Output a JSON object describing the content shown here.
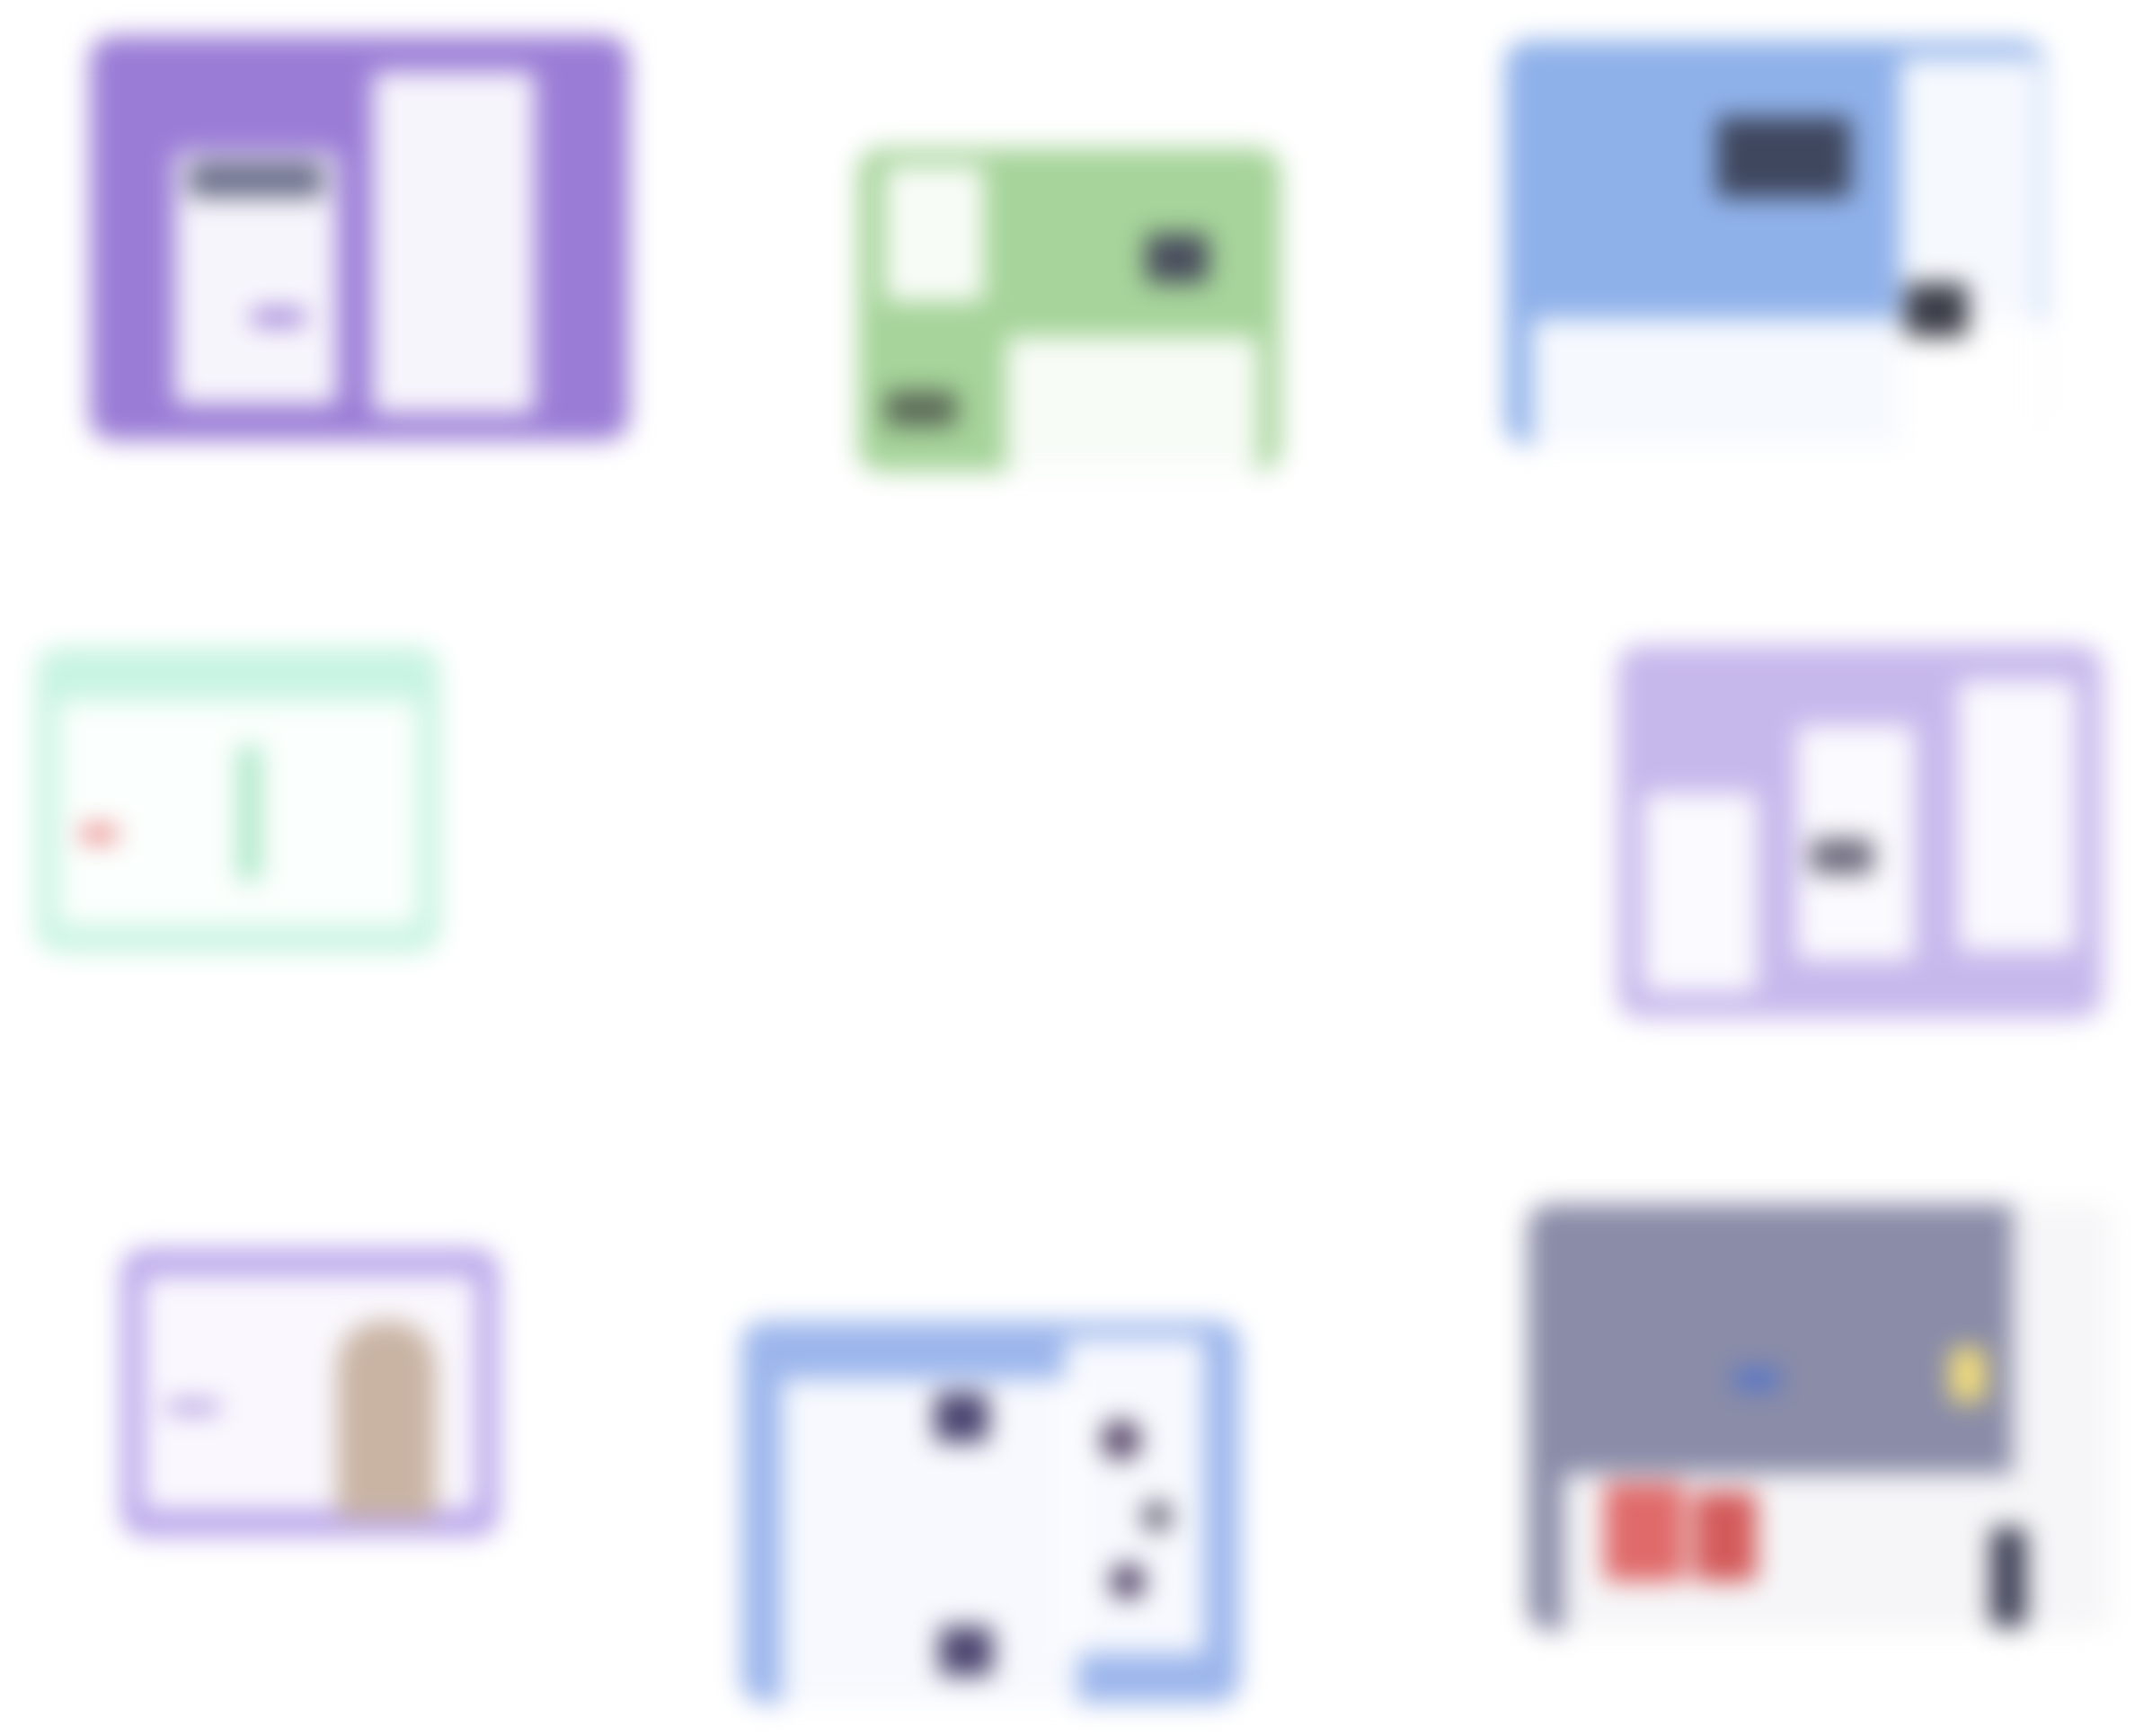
{
  "description_note": "",
  "cards": [
    {
      "name": "purple-card",
      "accent": "#9a7cd6"
    },
    {
      "name": "green-card",
      "accent": "#a6d49a"
    },
    {
      "name": "blue-card",
      "accent": "#8fb1ea"
    },
    {
      "name": "mint-card",
      "accent": "#c8f4e2"
    },
    {
      "name": "lavender-card",
      "accent": "#c7b8ec"
    },
    {
      "name": "lavender-portrait-card",
      "accent": "#b8a4ea"
    },
    {
      "name": "blue-collage-card",
      "accent": "#9cb6ec"
    },
    {
      "name": "slate-card",
      "accent": "#8a8ca8"
    }
  ],
  "background": "#ffffff"
}
